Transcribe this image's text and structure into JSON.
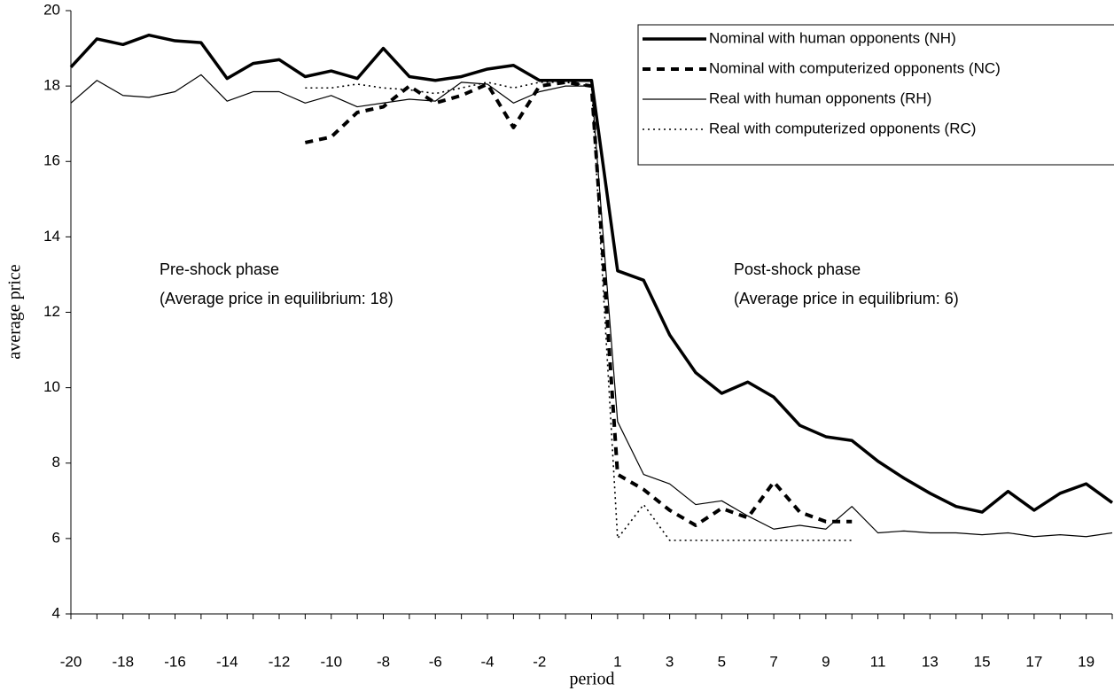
{
  "chart_data": {
    "type": "line",
    "x_label": "period",
    "y_label": "average price",
    "categories": [
      -20,
      null,
      -18,
      null,
      -16,
      null,
      -14,
      null,
      -12,
      null,
      -10,
      null,
      -8,
      null,
      -6,
      null,
      -4,
      null,
      -2,
      null,
      null,
      1,
      null,
      3,
      null,
      5,
      null,
      7,
      null,
      9,
      null,
      11,
      null,
      13,
      null,
      15,
      null,
      17,
      null,
      19,
      null
    ],
    "ylim": [
      4,
      20
    ],
    "yticks": [
      4,
      6,
      8,
      10,
      12,
      14,
      16,
      18,
      20
    ],
    "legend": "upper right",
    "annotations": [
      [
        "Pre-shock phase",
        "(Average price in equilibrium: 18)"
      ],
      [
        "Post-shock phase",
        "(Average price in equilibrium: 6)"
      ]
    ],
    "series": [
      {
        "name": "Nominal with human opponents (NH)",
        "color": "#000000",
        "linestyle": "solid-bold",
        "values": [
          18.5,
          19.25,
          19.1,
          19.35,
          19.2,
          19.15,
          18.2,
          18.6,
          18.7,
          18.25,
          18.4,
          18.2,
          19.0,
          18.25,
          18.15,
          18.25,
          18.45,
          18.55,
          18.15,
          18.15,
          18.15,
          13.1,
          12.85,
          11.4,
          10.4,
          9.85,
          10.15,
          9.75,
          9.0,
          8.7,
          8.6,
          8.05,
          7.6,
          7.2,
          6.85,
          6.7,
          7.25,
          6.75,
          7.2,
          7.45,
          6.95
        ]
      },
      {
        "name": "Nominal with computerized opponents (NC)",
        "color": "#000000",
        "linestyle": "dashed-bold",
        "values": [
          null,
          null,
          null,
          null,
          null,
          null,
          null,
          null,
          null,
          16.5,
          16.65,
          17.3,
          17.45,
          18.0,
          17.55,
          17.75,
          18.05,
          16.9,
          18.0,
          18.1,
          18.0,
          7.7,
          7.3,
          6.75,
          6.35,
          6.8,
          6.55,
          7.5,
          6.7,
          6.45,
          6.45,
          null,
          null,
          null,
          null,
          null,
          null,
          null,
          null,
          null,
          null
        ]
      },
      {
        "name": "Real with human opponents (RH)",
        "color": "#000000",
        "linestyle": "solid",
        "values": [
          17.55,
          18.15,
          17.75,
          17.7,
          17.85,
          18.3,
          17.6,
          17.85,
          17.85,
          17.55,
          17.75,
          17.45,
          17.55,
          17.65,
          17.6,
          18.1,
          18.05,
          17.55,
          17.85,
          18.0,
          18.0,
          9.1,
          7.7,
          7.45,
          6.9,
          7.0,
          6.6,
          6.25,
          6.35,
          6.25,
          6.85,
          6.15,
          6.2,
          6.15,
          6.15,
          6.1,
          6.15,
          6.05,
          6.1,
          6.05,
          6.15
        ]
      },
      {
        "name": "Real with computerized opponents (RC)",
        "color": "#000000",
        "linestyle": "dotted",
        "values": [
          null,
          null,
          null,
          null,
          null,
          null,
          null,
          null,
          null,
          17.95,
          17.95,
          18.05,
          17.95,
          17.9,
          17.8,
          17.95,
          18.1,
          17.95,
          18.1,
          18.1,
          18.0,
          6.0,
          6.9,
          5.95,
          5.95,
          5.95,
          5.95,
          5.95,
          5.95,
          5.95,
          5.95,
          null,
          null,
          null,
          null,
          null,
          null,
          null,
          null,
          null,
          null
        ]
      }
    ]
  }
}
